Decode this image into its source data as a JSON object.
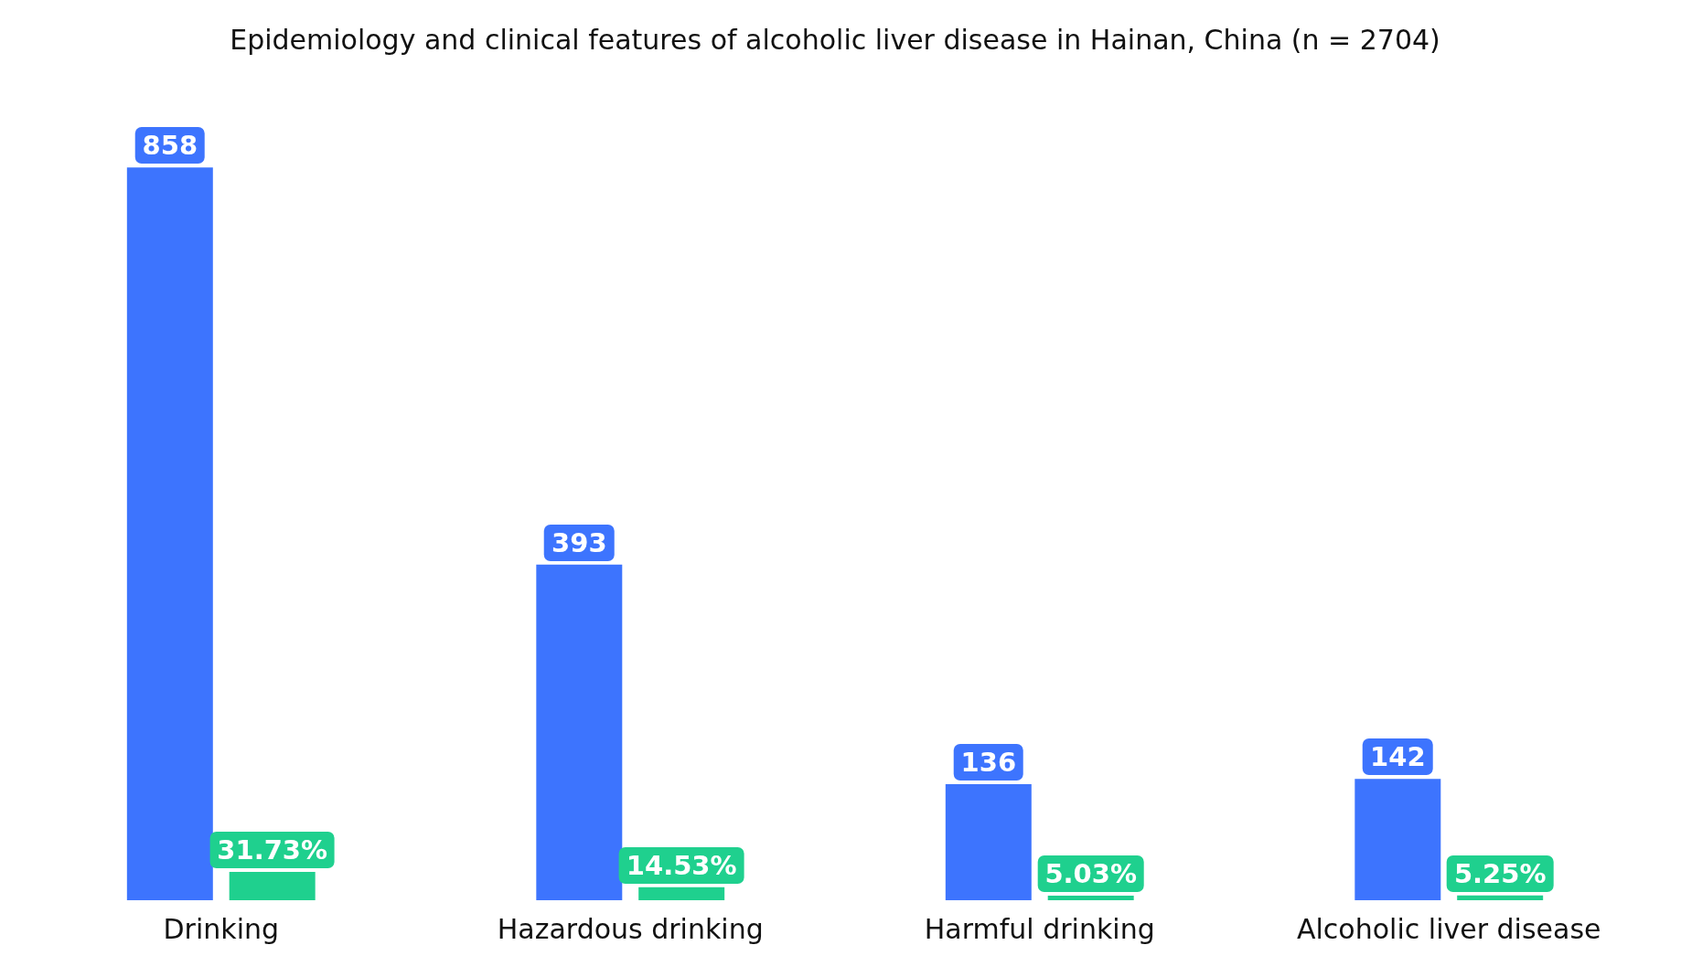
{
  "chart_data": {
    "type": "bar",
    "title": "Epidemiology and clinical features of alcoholic liver disease in Hainan, China (n = 2704)",
    "categories": [
      "Drinking",
      "Hazardous drinking",
      "Harmful drinking",
      "Alcoholic liver disease"
    ],
    "series": [
      {
        "color": "#3d74fe",
        "values": [
          858,
          393,
          136,
          142
        ],
        "value_labels": [
          "858",
          "393",
          "136",
          "142"
        ]
      },
      {
        "color": "#1fd08e",
        "axis": "y2",
        "values": [
          31.73,
          14.53,
          5.03,
          5.25
        ],
        "value_labels": [
          "31.73%",
          "14.53%",
          "5.03%",
          "5.25%"
        ]
      }
    ],
    "grid": false,
    "legend": false,
    "tick_labels": "x"
  }
}
